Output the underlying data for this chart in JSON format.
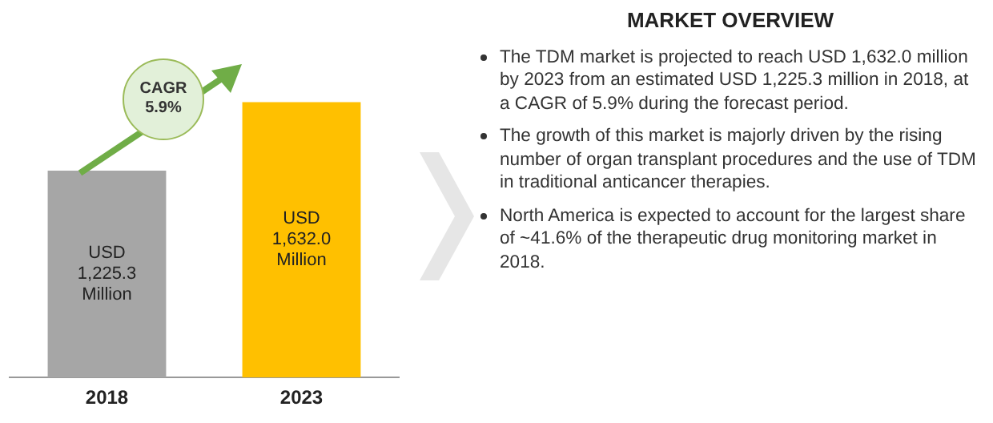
{
  "chart_data": {
    "type": "bar",
    "title": "MARKET OVERVIEW",
    "categories": [
      "2018",
      "2023"
    ],
    "values": [
      1225.3,
      1632.0
    ],
    "colors": [
      "#a6a6a6",
      "#ffc000"
    ],
    "value_labels": [
      "USD\n1,225.3\nMillion",
      "USD\n1,632.0\nMillion"
    ],
    "grid": false,
    "legend": false,
    "annotations": [
      "CAGR\n5.9%",
      "The TDM market is projected to reach USD 1,632.0 million by 2023 from an estimated USD 1,225.3 million in 2018, at a CAGR of 5.9% during the forecast period.",
      "The growth of this market is majorly driven by the rising number of organ transplant procedures and the use of TDM in traditional anticancer therapies.",
      "North America is expected to account for the largest share of ~41.6% of the therapeutic drug monitoring market in 2018."
    ]
  }
}
